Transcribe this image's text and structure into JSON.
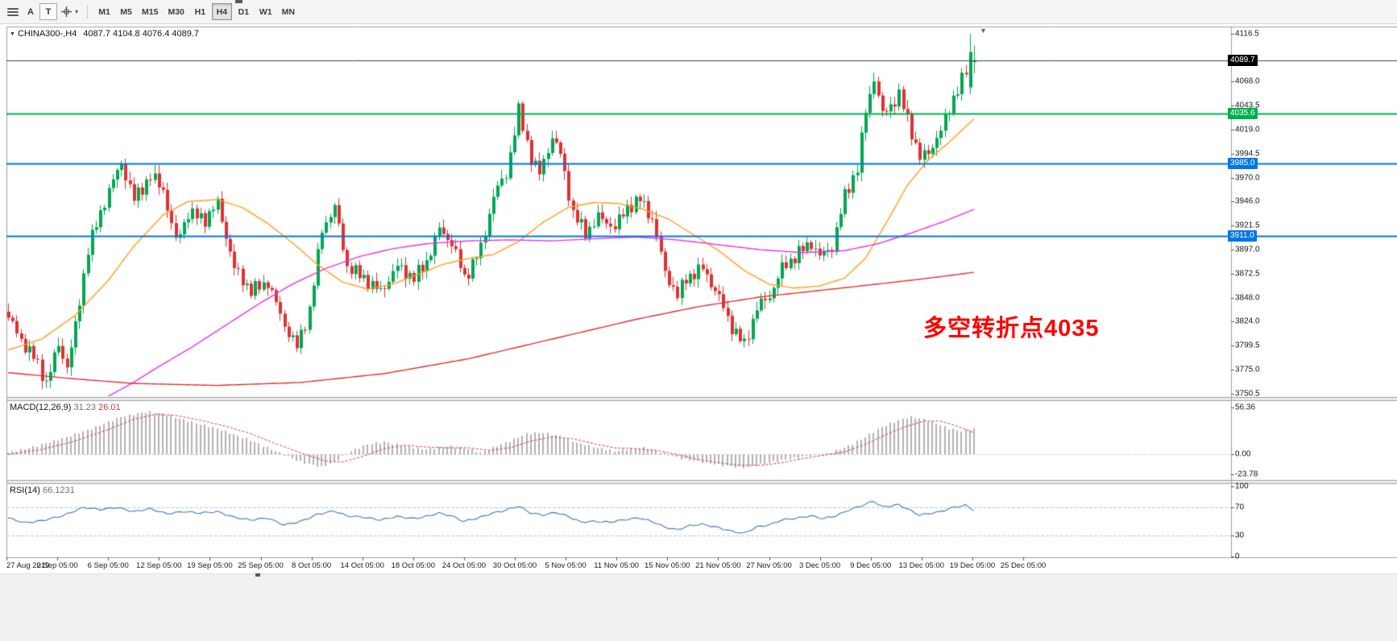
{
  "toolbar": {
    "tool_buttons": [
      {
        "label": "A"
      },
      {
        "label": "T"
      }
    ],
    "timeframes": [
      "M1",
      "M5",
      "M15",
      "M30",
      "H1",
      "H4",
      "D1",
      "W1",
      "MN"
    ],
    "selected_timeframe": "H4"
  },
  "icons": {
    "symbol_marker": "▼",
    "cursor_dropdown": "▾",
    "chart_shift_marker": "▼"
  },
  "chart_header": {
    "symbol_tf": "CHINA300-,H4",
    "ohlc": "4087.7 4104.8 4076.4 4089.7"
  },
  "macd_header": {
    "name": "MACD(12,26,9)",
    "value_main": "31.23",
    "value_signal": "26.01"
  },
  "rsi_header": {
    "name": "RSI(14)",
    "value": "66.1231"
  },
  "annotation": {
    "text": "多空转折点4035",
    "color": "#ff0000"
  },
  "colors": {
    "up": "#00a651",
    "down": "#e03030",
    "ma_fast": "#ff9f1a",
    "ma_mid": "#e832e8",
    "ma_slow": "#e03232",
    "macd_hist": "#b2b2b2",
    "macd_signal": "#cc4444",
    "rsi_line": "#4576b5",
    "level_green": "#00b050",
    "level_blue": "#0076e8",
    "level_dark": "#37474f"
  },
  "chart_data": {
    "type": "candlestick",
    "title": "CHINA300-,H4",
    "symbol": "CHINA300-",
    "timeframe": "H4",
    "bars": 232,
    "ylim": [
      3750.5,
      4116.5
    ],
    "grid": false,
    "current_bar": {
      "open": 4087.7,
      "high": 4104.8,
      "low": 4076.4,
      "close": 4089.7
    },
    "price_ticks": [
      {
        "t": "4116.5",
        "v": 4116.5
      },
      {
        "t": "4068.0",
        "v": 4068.0
      },
      {
        "t": "4043.5",
        "v": 4043.5
      },
      {
        "t": "4019.0",
        "v": 4019.0
      },
      {
        "t": "3994.5",
        "v": 3994.5
      },
      {
        "t": "3970.0",
        "v": 3970.0
      },
      {
        "t": "3946.0",
        "v": 3946.0
      },
      {
        "t": "3921.5",
        "v": 3921.5
      },
      {
        "t": "3897.0",
        "v": 3897.0
      },
      {
        "t": "3872.5",
        "v": 3872.5
      },
      {
        "t": "3848.0",
        "v": 3848.0
      },
      {
        "t": "3824.0",
        "v": 3824.0
      },
      {
        "t": "3799.5",
        "v": 3799.5
      },
      {
        "t": "3775.0",
        "v": 3775.0
      },
      {
        "t": "3750.5",
        "v": 3750.5
      }
    ],
    "horizontal_levels": [
      {
        "price": 4089.7,
        "label": "4089.7",
        "line": "#37474f",
        "tag": "#000000",
        "width": 1
      },
      {
        "price": 4035.6,
        "label": "4035.6",
        "line": "#00b050",
        "tag": "#00b050",
        "width": 2
      },
      {
        "price": 3985.0,
        "label": "3985.0",
        "line": "#0076e8",
        "tag": "#0076e8",
        "width": 2
      },
      {
        "price": 3911.0,
        "label": "3911.0",
        "line": "#0076e8",
        "tag": "#0076e8",
        "width": 2
      }
    ],
    "close_path": [
      [
        0,
        3828
      ],
      [
        3,
        3805
      ],
      [
        6,
        3788
      ],
      [
        9,
        3762
      ],
      [
        12,
        3800
      ],
      [
        14,
        3778
      ],
      [
        16,
        3818
      ],
      [
        19,
        3898
      ],
      [
        24,
        3958
      ],
      [
        27,
        3985
      ],
      [
        30,
        3948
      ],
      [
        34,
        3972
      ],
      [
        37,
        3958
      ],
      [
        40,
        3905
      ],
      [
        43,
        3934
      ],
      [
        47,
        3928
      ],
      [
        50,
        3944
      ],
      [
        54,
        3878
      ],
      [
        58,
        3855
      ],
      [
        62,
        3864
      ],
      [
        66,
        3820
      ],
      [
        69,
        3798
      ],
      [
        72,
        3836
      ],
      [
        75,
        3918
      ],
      [
        78,
        3940
      ],
      [
        81,
        3880
      ],
      [
        85,
        3868
      ],
      [
        89,
        3854
      ],
      [
        93,
        3880
      ],
      [
        97,
        3868
      ],
      [
        100,
        3885
      ],
      [
        103,
        3918
      ],
      [
        106,
        3904
      ],
      [
        109,
        3868
      ],
      [
        113,
        3898
      ],
      [
        116,
        3952
      ],
      [
        119,
        3974
      ],
      [
        122,
        4038
      ],
      [
        125,
        3990
      ],
      [
        127,
        3974
      ],
      [
        130,
        4012
      ],
      [
        132,
        3994
      ],
      [
        135,
        3934
      ],
      [
        138,
        3914
      ],
      [
        141,
        3930
      ],
      [
        145,
        3920
      ],
      [
        148,
        3940
      ],
      [
        151,
        3948
      ],
      [
        154,
        3928
      ],
      [
        157,
        3874
      ],
      [
        160,
        3850
      ],
      [
        162,
        3868
      ],
      [
        166,
        3878
      ],
      [
        170,
        3848
      ],
      [
        173,
        3818
      ],
      [
        176,
        3800
      ],
      [
        179,
        3838
      ],
      [
        182,
        3850
      ],
      [
        185,
        3878
      ],
      [
        189,
        3894
      ],
      [
        192,
        3904
      ],
      [
        194,
        3890
      ],
      [
        197,
        3900
      ],
      [
        200,
        3952
      ],
      [
        203,
        3980
      ],
      [
        205,
        4038
      ],
      [
        207,
        4072
      ],
      [
        209,
        4034
      ],
      [
        211,
        4044
      ],
      [
        213,
        4054
      ],
      [
        215,
        4030
      ],
      [
        218,
        3990
      ],
      [
        220,
        3996
      ],
      [
        223,
        4018
      ],
      [
        226,
        4052
      ],
      [
        229,
        4078
      ],
      [
        231,
        4090
      ]
    ],
    "ma_fast_path": [
      [
        0,
        3795
      ],
      [
        8,
        3806
      ],
      [
        16,
        3830
      ],
      [
        24,
        3866
      ],
      [
        30,
        3900
      ],
      [
        37,
        3932
      ],
      [
        43,
        3946
      ],
      [
        50,
        3948
      ],
      [
        56,
        3940
      ],
      [
        62,
        3924
      ],
      [
        68,
        3904
      ],
      [
        74,
        3882
      ],
      [
        80,
        3864
      ],
      [
        86,
        3857
      ],
      [
        92,
        3862
      ],
      [
        98,
        3872
      ],
      [
        104,
        3882
      ],
      [
        110,
        3888
      ],
      [
        116,
        3892
      ],
      [
        122,
        3905
      ],
      [
        128,
        3925
      ],
      [
        134,
        3940
      ],
      [
        140,
        3945
      ],
      [
        146,
        3944
      ],
      [
        152,
        3938
      ],
      [
        158,
        3928
      ],
      [
        164,
        3912
      ],
      [
        170,
        3896
      ],
      [
        176,
        3876
      ],
      [
        182,
        3862
      ],
      [
        188,
        3858
      ],
      [
        194,
        3860
      ],
      [
        200,
        3868
      ],
      [
        205,
        3888
      ],
      [
        210,
        3924
      ],
      [
        215,
        3962
      ],
      [
        220,
        3988
      ],
      [
        225,
        4006
      ],
      [
        231,
        4030
      ]
    ],
    "ma_mid_path": [
      [
        24,
        3748
      ],
      [
        30,
        3762
      ],
      [
        36,
        3778
      ],
      [
        44,
        3798
      ],
      [
        52,
        3820
      ],
      [
        60,
        3842
      ],
      [
        68,
        3862
      ],
      [
        76,
        3878
      ],
      [
        84,
        3890
      ],
      [
        92,
        3898
      ],
      [
        100,
        3903
      ],
      [
        110,
        3906
      ],
      [
        120,
        3907
      ],
      [
        130,
        3906
      ],
      [
        140,
        3908
      ],
      [
        150,
        3910
      ],
      [
        160,
        3907
      ],
      [
        170,
        3902
      ],
      [
        180,
        3897
      ],
      [
        190,
        3894
      ],
      [
        200,
        3896
      ],
      [
        208,
        3903
      ],
      [
        216,
        3914
      ],
      [
        224,
        3926
      ],
      [
        231,
        3938
      ]
    ],
    "ma_slow_path": [
      [
        0,
        3772
      ],
      [
        15,
        3766
      ],
      [
        30,
        3761
      ],
      [
        50,
        3759
      ],
      [
        70,
        3762
      ],
      [
        90,
        3771
      ],
      [
        110,
        3786
      ],
      [
        130,
        3806
      ],
      [
        150,
        3826
      ],
      [
        165,
        3839
      ],
      [
        180,
        3849
      ],
      [
        195,
        3856
      ],
      [
        210,
        3863
      ],
      [
        222,
        3869
      ],
      [
        231,
        3874
      ]
    ],
    "macd": {
      "params": "12,26,9",
      "value": 31.23,
      "signal_value": 26.01,
      "ylim": [
        -23.78,
        56.36
      ],
      "ticks": [
        {
          "t": "56.36",
          "v": 56.36
        },
        {
          "t": "0.00",
          "v": 0
        },
        {
          "t": "-23.78",
          "v": -23.78
        }
      ],
      "hist_path": [
        [
          0,
          2
        ],
        [
          6,
          9
        ],
        [
          13,
          19
        ],
        [
          20,
          31
        ],
        [
          27,
          45
        ],
        [
          33,
          51
        ],
        [
          37,
          49
        ],
        [
          43,
          40
        ],
        [
          50,
          31
        ],
        [
          58,
          17
        ],
        [
          64,
          4
        ],
        [
          70,
          -9
        ],
        [
          75,
          -15
        ],
        [
          78,
          -9
        ],
        [
          82,
          4
        ],
        [
          86,
          12
        ],
        [
          90,
          15
        ],
        [
          95,
          10
        ],
        [
          100,
          6
        ],
        [
          105,
          10
        ],
        [
          110,
          7
        ],
        [
          113,
          2
        ],
        [
          116,
          8
        ],
        [
          120,
          16
        ],
        [
          124,
          25
        ],
        [
          128,
          26
        ],
        [
          132,
          22
        ],
        [
          136,
          14
        ],
        [
          141,
          8
        ],
        [
          145,
          4
        ],
        [
          149,
          7
        ],
        [
          152,
          8
        ],
        [
          156,
          3
        ],
        [
          161,
          -5
        ],
        [
          166,
          -9
        ],
        [
          171,
          -13
        ],
        [
          176,
          -16
        ],
        [
          181,
          -11
        ],
        [
          186,
          -6
        ],
        [
          191,
          -2
        ],
        [
          196,
          1
        ],
        [
          201,
          10
        ],
        [
          205,
          21
        ],
        [
          209,
          33
        ],
        [
          213,
          41
        ],
        [
          216,
          45
        ],
        [
          219,
          42
        ],
        [
          222,
          37
        ],
        [
          225,
          31
        ],
        [
          228,
          28
        ],
        [
          231,
          31
        ]
      ],
      "signal_path": [
        [
          0,
          0
        ],
        [
          8,
          6
        ],
        [
          16,
          16
        ],
        [
          24,
          30
        ],
        [
          30,
          42
        ],
        [
          35,
          48
        ],
        [
          40,
          47
        ],
        [
          46,
          41
        ],
        [
          52,
          34
        ],
        [
          58,
          25
        ],
        [
          64,
          13
        ],
        [
          70,
          2
        ],
        [
          76,
          -8
        ],
        [
          80,
          -9
        ],
        [
          85,
          -2
        ],
        [
          90,
          7
        ],
        [
          95,
          11
        ],
        [
          100,
          9
        ],
        [
          105,
          8
        ],
        [
          110,
          8
        ],
        [
          115,
          5
        ],
        [
          120,
          8
        ],
        [
          125,
          16
        ],
        [
          130,
          21
        ],
        [
          135,
          19
        ],
        [
          140,
          13
        ],
        [
          145,
          8
        ],
        [
          150,
          7
        ],
        [
          155,
          5
        ],
        [
          160,
          0
        ],
        [
          165,
          -6
        ],
        [
          170,
          -10
        ],
        [
          175,
          -13
        ],
        [
          180,
          -13
        ],
        [
          185,
          -10
        ],
        [
          190,
          -5
        ],
        [
          195,
          -1
        ],
        [
          200,
          3
        ],
        [
          205,
          12
        ],
        [
          210,
          24
        ],
        [
          215,
          34
        ],
        [
          219,
          40
        ],
        [
          223,
          40
        ],
        [
          227,
          34
        ],
        [
          231,
          26
        ]
      ]
    },
    "rsi": {
      "period": 14,
      "value": 66.1231,
      "levels": [
        70,
        30
      ],
      "ylim": [
        0,
        100
      ],
      "ticks": [
        {
          "t": "100",
          "v": 100
        },
        {
          "t": "70",
          "v": 70
        },
        {
          "t": "30",
          "v": 30
        },
        {
          "t": "0",
          "v": 0
        }
      ],
      "path": [
        [
          0,
          55
        ],
        [
          4,
          48
        ],
        [
          8,
          51
        ],
        [
          13,
          58
        ],
        [
          18,
          70
        ],
        [
          22,
          67
        ],
        [
          26,
          70
        ],
        [
          30,
          64
        ],
        [
          34,
          68
        ],
        [
          38,
          61
        ],
        [
          42,
          64
        ],
        [
          46,
          62
        ],
        [
          50,
          64
        ],
        [
          54,
          56
        ],
        [
          58,
          52
        ],
        [
          62,
          55
        ],
        [
          66,
          45
        ],
        [
          70,
          50
        ],
        [
          74,
          60
        ],
        [
          78,
          65
        ],
        [
          81,
          58
        ],
        [
          85,
          56
        ],
        [
          89,
          52
        ],
        [
          93,
          57
        ],
        [
          97,
          54
        ],
        [
          100,
          57
        ],
        [
          103,
          62
        ],
        [
          106,
          58
        ],
        [
          109,
          50
        ],
        [
          113,
          56
        ],
        [
          116,
          62
        ],
        [
          119,
          66
        ],
        [
          122,
          72
        ],
        [
          125,
          62
        ],
        [
          128,
          59
        ],
        [
          131,
          63
        ],
        [
          134,
          57
        ],
        [
          137,
          49
        ],
        [
          140,
          50
        ],
        [
          144,
          49
        ],
        [
          148,
          53
        ],
        [
          151,
          55
        ],
        [
          154,
          50
        ],
        [
          157,
          42
        ],
        [
          160,
          38
        ],
        [
          163,
          44
        ],
        [
          166,
          46
        ],
        [
          170,
          41
        ],
        [
          173,
          36
        ],
        [
          176,
          33
        ],
        [
          179,
          42
        ],
        [
          182,
          45
        ],
        [
          185,
          52
        ],
        [
          189,
          55
        ],
        [
          192,
          58
        ],
        [
          195,
          54
        ],
        [
          198,
          58
        ],
        [
          201,
          66
        ],
        [
          204,
          72
        ],
        [
          207,
          79
        ],
        [
          209,
          71
        ],
        [
          211,
          72
        ],
        [
          213,
          74
        ],
        [
          215,
          68
        ],
        [
          218,
          59
        ],
        [
          220,
          61
        ],
        [
          223,
          64
        ],
        [
          226,
          70
        ],
        [
          229,
          73
        ],
        [
          231,
          66
        ]
      ]
    },
    "x_labels": [
      "27 Aug 2019",
      "2 Sep 05:00",
      "6 Sep 05:00",
      "12 Sep 05:00",
      "19 Sep 05:00",
      "25 Sep 05:00",
      "8 Oct 05:00",
      "14 Oct 05:00",
      "18 Oct 05:00",
      "24 Oct 05:00",
      "30 Oct 05:00",
      "5 Nov 05:00",
      "11 Nov 05:00",
      "15 Nov 05:00",
      "21 Nov 05:00",
      "27 Nov 05:00",
      "3 Dec 05:00",
      "9 Dec 05:00",
      "13 Dec 05:00",
      "19 Dec 05:00",
      "25 Dec 05:00"
    ]
  }
}
